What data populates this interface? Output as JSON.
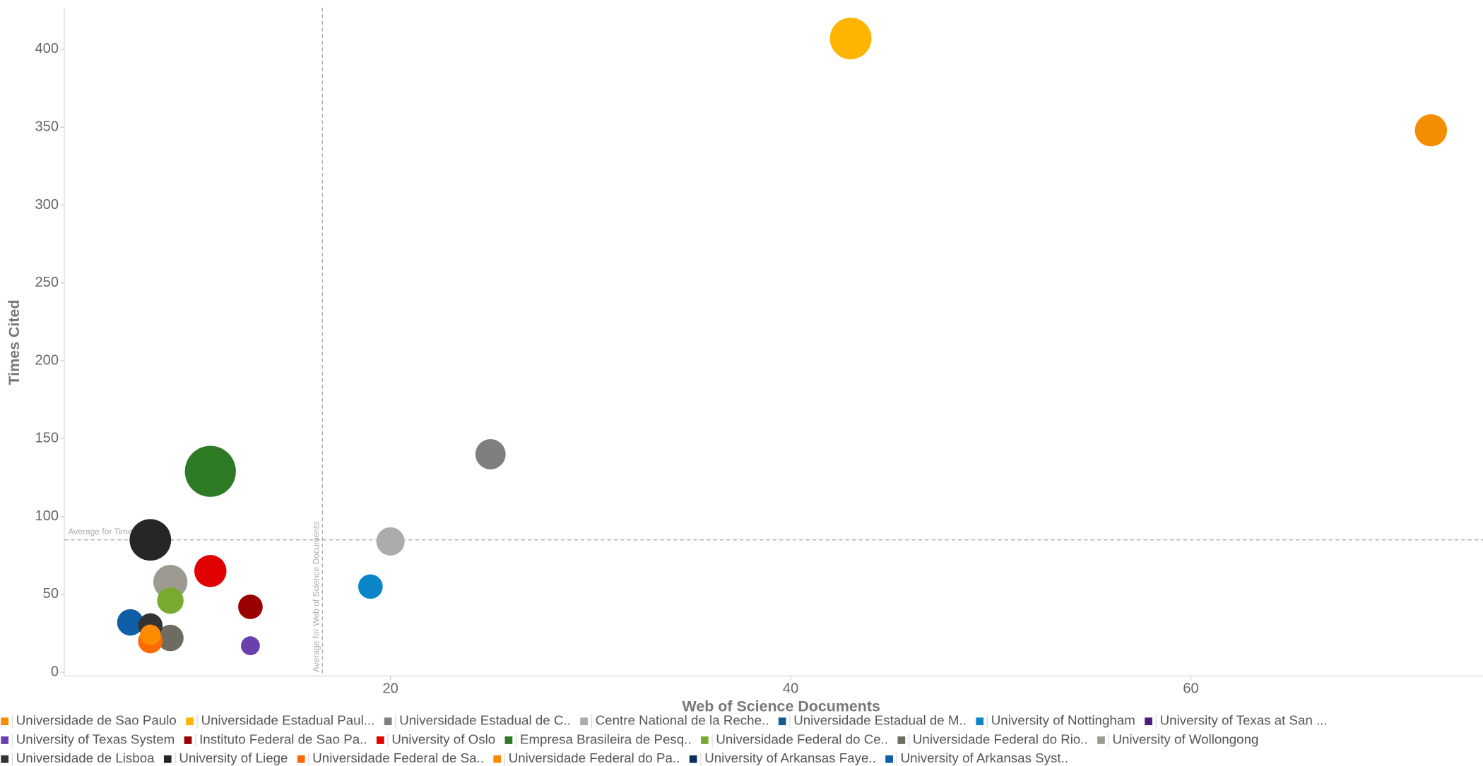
{
  "chart_data": {
    "type": "bubble",
    "x_label": "Web of Science Documents",
    "y_label": "Times Cited",
    "xlim": [
      3.7,
      74.6
    ],
    "ylim": [
      -2.4,
      426.7
    ],
    "xticks": [
      20,
      40,
      60
    ],
    "yticks": [
      0,
      50,
      100,
      150,
      200,
      250,
      300,
      350,
      400
    ],
    "reference_lines": [
      {
        "label": "Average for Times Cited",
        "axis": "y",
        "value": 85
      },
      {
        "label": "Average for Web of Science Documents",
        "axis": "x",
        "value": 16.6
      }
    ],
    "series": [
      {
        "name": "Universidade de Sao Paulo",
        "color": "#f28e00",
        "x": 72,
        "y": 348,
        "size": 72
      },
      {
        "name": "Universidade Estadual Paul...",
        "color": "#ffb400",
        "x": 43,
        "y": 407,
        "size": 121
      },
      {
        "name": "Universidade Estadual de C..",
        "color": "#7f7f7f",
        "x": 25,
        "y": 140,
        "size": 64
      },
      {
        "name": "Centre National de la Reche..",
        "color": "#acacac",
        "x": 20,
        "y": 84,
        "size": 56
      },
      {
        "name": "Universidade Estadual de M..",
        "color": "#1b5a8c",
        "x": null,
        "y": null,
        "size": null
      },
      {
        "name": "University of Nottingham",
        "color": "#0a86c8",
        "x": 19,
        "y": 55,
        "size": 42
      },
      {
        "name": "University of Texas at San ...",
        "color": "#4b1c7a",
        "x": null,
        "y": null,
        "size": null
      },
      {
        "name": "University of Texas System",
        "color": "#6a3fae",
        "x": 13,
        "y": 17,
        "size": 25
      },
      {
        "name": "Instituto Federal de Sao Pa..",
        "color": "#9a0000",
        "x": 13,
        "y": 42,
        "size": 42
      },
      {
        "name": "University of Oslo",
        "color": "#e00000",
        "x": 11,
        "y": 65,
        "size": 72
      },
      {
        "name": "Empresa Brasileira de Pesq..",
        "color": "#2f7a25",
        "x": 11,
        "y": 129,
        "size": 182
      },
      {
        "name": "Universidade Federal do Ce..",
        "color": "#77aa2e",
        "x": 9,
        "y": 46,
        "size": 49
      },
      {
        "name": "Universidade Federal do Rio..",
        "color": "#6e6b60",
        "x": 9,
        "y": 22,
        "size": 49
      },
      {
        "name": "University of Wollongong",
        "color": "#9d9a92",
        "x": 9,
        "y": 58,
        "size": 81
      },
      {
        "name": "Universidade de Lisboa",
        "color": "#333333",
        "x": 8,
        "y": 30,
        "size": 42
      },
      {
        "name": "University of Liege",
        "color": "#262626",
        "x": 8,
        "y": 85,
        "size": 121
      },
      {
        "name": "Universidade Federal de Sa..",
        "color": "#ff6a00",
        "x": 8,
        "y": 20,
        "size": 42
      },
      {
        "name": "Universidade Federal do Pa..",
        "color": "#ff8c00",
        "x": 8,
        "y": 24,
        "size": 30
      },
      {
        "name": "University of Arkansas Faye..",
        "color": "#0c2f5e",
        "x": null,
        "y": null,
        "size": null
      },
      {
        "name": "University of Arkansas Syst..",
        "color": "#0f5ea8",
        "x": 7,
        "y": 32,
        "size": 49
      }
    ]
  }
}
